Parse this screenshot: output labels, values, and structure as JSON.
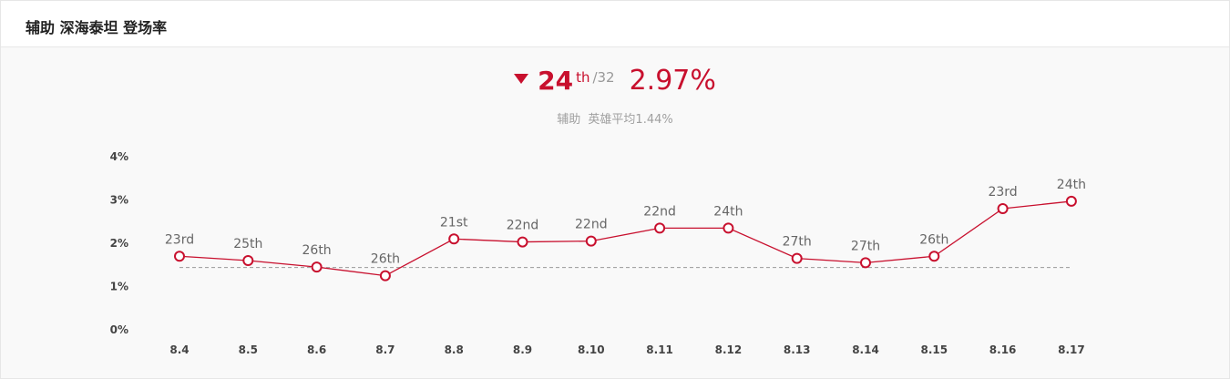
{
  "header": {
    "title": "辅助 深海泰坦 登场率"
  },
  "summary": {
    "trend": "down-arrow-icon",
    "rank": "24",
    "rank_suffix": "th",
    "rank_total": "/32",
    "rate": "2.97%",
    "role": "辅助",
    "avg_label": "英雄平均1.44%"
  },
  "colors": {
    "accent": "#c8102e",
    "average_line": "#999999"
  },
  "chart_data": {
    "type": "line",
    "categories": [
      "8.4",
      "8.5",
      "8.6",
      "8.7",
      "8.8",
      "8.9",
      "8.10",
      "8.11",
      "8.12",
      "8.13",
      "8.14",
      "8.15",
      "8.16",
      "8.17"
    ],
    "yticks": [
      "0%",
      "1%",
      "2%",
      "3%",
      "4%"
    ],
    "ylim": [
      0,
      4
    ],
    "series": [
      {
        "values": [
          1.7,
          1.6,
          1.45,
          1.25,
          2.1,
          2.03,
          2.05,
          2.35,
          2.35,
          1.65,
          1.55,
          1.7,
          2.8,
          2.97
        ],
        "labels": [
          "23rd",
          "25th",
          "26th",
          "26th",
          "21st",
          "22nd",
          "22nd",
          "22nd",
          "24th",
          "27th",
          "27th",
          "26th",
          "23rd",
          "24th"
        ]
      }
    ],
    "average": 1.44,
    "grid": false
  }
}
